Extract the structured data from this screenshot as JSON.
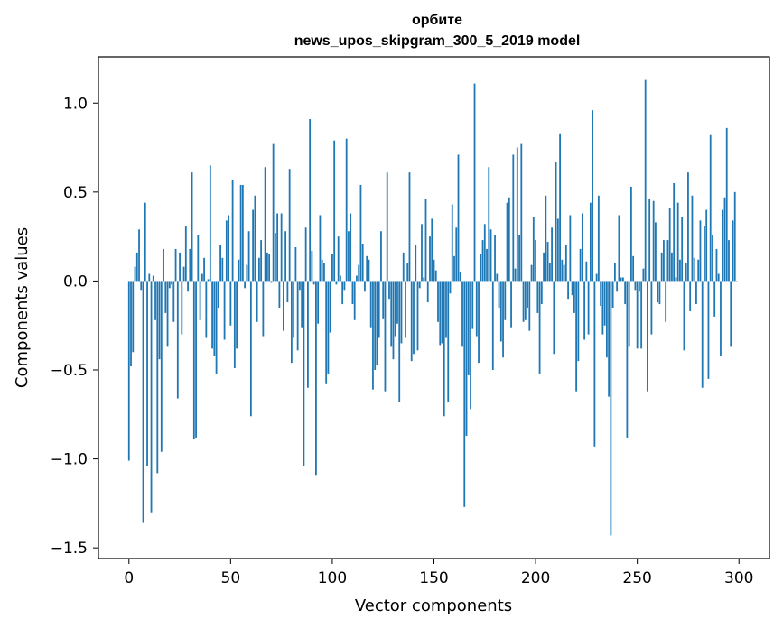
{
  "chart_data": {
    "type": "bar",
    "title_line1": "орбите",
    "title_line2": "news_upos_skipgram_300_5_2019 model",
    "xlabel": "Vector components",
    "ylabel": "Components values",
    "xlim": [
      -15,
      315
    ],
    "ylim": [
      -1.56,
      1.26
    ],
    "xticks": [
      0,
      50,
      100,
      150,
      200,
      250,
      300
    ],
    "xtick_labels": [
      "0",
      "50",
      "100",
      "150",
      "200",
      "250",
      "300"
    ],
    "yticks": [
      -1.5,
      -1.0,
      -0.5,
      0.0,
      0.5,
      1.0
    ],
    "ytick_labels": [
      "−1.5",
      "−1.0",
      "−0.5",
      "0.0",
      "0.5",
      "1.0"
    ],
    "bar_color": "#1f77b4",
    "values": [
      -1.01,
      -0.48,
      -0.4,
      0.08,
      0.16,
      0.29,
      -0.05,
      -1.36,
      0.44,
      -1.04,
      0.04,
      -1.3,
      0.03,
      -0.22,
      -1.08,
      -0.44,
      -0.96,
      0.18,
      -0.18,
      -0.37,
      -0.04,
      -0.02,
      -0.23,
      0.18,
      -0.66,
      0.16,
      -0.3,
      0.08,
      0.31,
      -0.06,
      0.18,
      0.61,
      -0.89,
      -0.88,
      0.26,
      -0.22,
      0.04,
      0.13,
      -0.32,
      0.01,
      0.65,
      -0.38,
      -0.42,
      -0.52,
      -0.15,
      0.2,
      0.13,
      -0.33,
      0.34,
      0.37,
      -0.25,
      0.57,
      -0.49,
      -0.38,
      0.12,
      0.54,
      0.54,
      -0.04,
      0.09,
      0.28,
      -0.76,
      0.4,
      0.48,
      -0.23,
      0.13,
      0.23,
      -0.31,
      0.64,
      0.16,
      0.15,
      -0.01,
      0.77,
      0.27,
      0.38,
      -0.15,
      0.38,
      -0.28,
      0.28,
      -0.12,
      0.63,
      -0.46,
      -0.32,
      0.19,
      -0.39,
      -0.05,
      -0.26,
      -1.04,
      0.3,
      -0.6,
      0.91,
      0.17,
      -0.02,
      -1.09,
      -0.24,
      0.37,
      0.12,
      0.1,
      -0.58,
      -0.52,
      -0.29,
      0.15,
      0.79,
      -0.02,
      0.25,
      0.03,
      -0.13,
      -0.05,
      0.8,
      0.28,
      0.38,
      -0.13,
      -0.22,
      0.03,
      0.09,
      0.54,
      0.21,
      -0.06,
      0.14,
      0.12,
      -0.26,
      -0.61,
      -0.5,
      -0.47,
      -0.32,
      0.28,
      -0.21,
      -0.62,
      0.61,
      -0.1,
      -0.37,
      -0.44,
      -0.31,
      -0.24,
      -0.68,
      -0.35,
      0.16,
      -0.32,
      0.1,
      0.61,
      -0.45,
      -0.41,
      0.2,
      -0.39,
      -0.04,
      0.32,
      0.02,
      0.46,
      -0.12,
      0.25,
      0.35,
      0.12,
      0.06,
      -0.23,
      -0.36,
      -0.35,
      -0.76,
      -0.32,
      -0.68,
      -0.07,
      0.43,
      0.14,
      0.3,
      0.71,
      0.05,
      -0.37,
      -1.27,
      -0.87,
      -0.53,
      -0.72,
      -0.27,
      1.11,
      -0.31,
      -0.46,
      0.15,
      0.23,
      0.32,
      0.18,
      0.64,
      0.29,
      -0.5,
      0.26,
      0.04,
      -0.15,
      -0.34,
      -0.43,
      -0.22,
      0.44,
      0.47,
      -0.26,
      0.71,
      0.07,
      0.75,
      0.26,
      0.77,
      -0.23,
      -0.22,
      -0.15,
      -0.28,
      0.09,
      0.36,
      0.23,
      -0.18,
      -0.52,
      -0.13,
      0.16,
      0.48,
      0.22,
      0.1,
      0.3,
      -0.41,
      0.67,
      0.35,
      0.83,
      0.12,
      0.09,
      0.2,
      -0.1,
      0.37,
      -0.08,
      -0.18,
      -0.62,
      -0.45,
      0.18,
      0.38,
      -0.33,
      0.11,
      -0.3,
      0.44,
      0.96,
      -0.93,
      0.04,
      0.48,
      -0.14,
      -0.3,
      -0.25,
      -0.43,
      -0.65,
      -1.43,
      -0.15,
      0.1,
      -0.06,
      0.37,
      0.02,
      0.02,
      -0.13,
      -0.88,
      -0.37,
      0.53,
      0.14,
      -0.05,
      -0.38,
      -0.06,
      -0.38,
      0.07,
      1.13,
      -0.62,
      0.46,
      -0.3,
      0.45,
      0.33,
      -0.12,
      -0.13,
      0.16,
      0.23,
      -0.23,
      0.23,
      0.41,
      0.16,
      0.55,
      0.02,
      0.44,
      0.12,
      0.36,
      -0.39,
      0.1,
      0.61,
      -0.17,
      0.48,
      0.13,
      -0.13,
      0.12,
      0.34,
      -0.6,
      0.31,
      0.4,
      -0.55,
      0.82,
      0.26,
      -0.2,
      0.18,
      0.04,
      -0.42,
      0.4,
      0.47,
      0.86,
      0.23,
      -0.37,
      0.34,
      0.5,
      0.0
    ]
  }
}
